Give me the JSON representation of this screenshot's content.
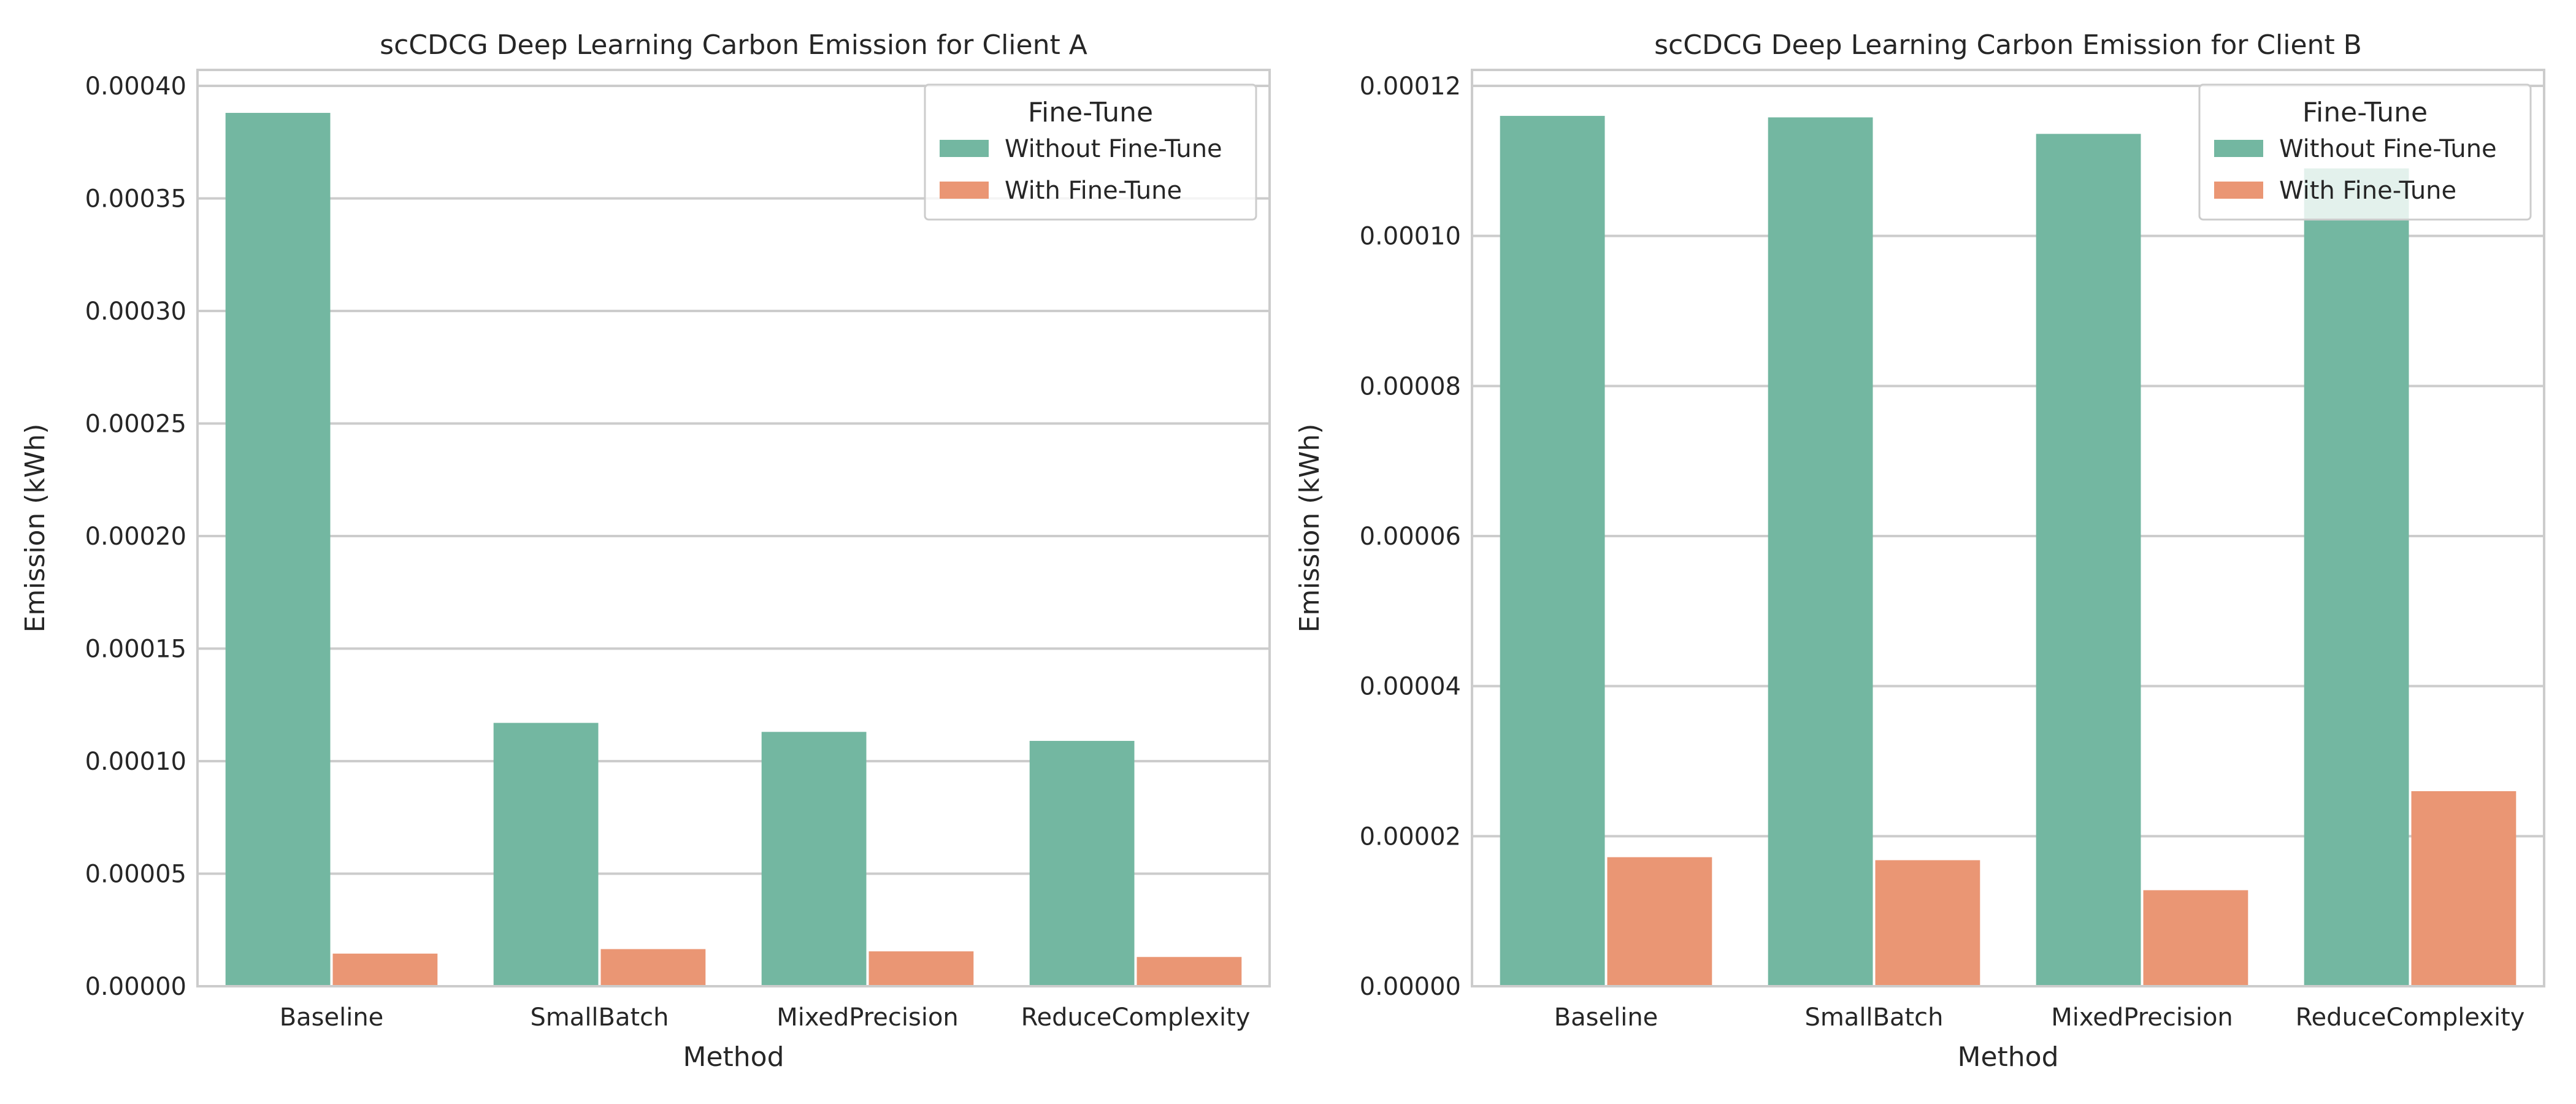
{
  "colors": {
    "without": "#73b7a1",
    "with": "#ea9674",
    "grid": "#cccccc",
    "frame": "#cccccc"
  },
  "chart_data": [
    {
      "type": "bar",
      "title": "scCDCG Deep Learning Carbon Emission for Client A",
      "xlabel": "Method",
      "ylabel": "Emission (kWh)",
      "categories": [
        "Baseline",
        "SmallBatch",
        "MixedPrecision",
        "ReduceComplexity"
      ],
      "series": [
        {
          "name": "Without Fine-Tune",
          "values": [
            0.000388,
            0.000117,
            0.000113,
            0.000109
          ]
        },
        {
          "name": "With Fine-Tune",
          "values": [
            1.45e-05,
            1.65e-05,
            1.55e-05,
            1.3e-05
          ]
        }
      ],
      "ylim": [
        0,
        0.0004
      ],
      "yticks": [
        "0.00000",
        "0.00005",
        "0.00010",
        "0.00015",
        "0.00020",
        "0.00025",
        "0.00030",
        "0.00035",
        "0.00040"
      ],
      "legend": {
        "title": "Fine-Tune",
        "placement": "top-right"
      },
      "grid": true
    },
    {
      "type": "bar",
      "title": "scCDCG Deep Learning Carbon Emission for Client B",
      "xlabel": "Method",
      "ylabel": "Emission (kWh)",
      "categories": [
        "Baseline",
        "SmallBatch",
        "MixedPrecision",
        "ReduceComplexity"
      ],
      "series": [
        {
          "name": "Without Fine-Tune",
          "values": [
            0.000116,
            0.0001158,
            0.0001136,
            0.000109
          ]
        },
        {
          "name": "With Fine-Tune",
          "values": [
            1.72e-05,
            1.68e-05,
            1.28e-05,
            2.6e-05
          ]
        }
      ],
      "ylim": [
        0,
        0.00012
      ],
      "yticks": [
        "0.00000",
        "0.00002",
        "0.00004",
        "0.00006",
        "0.00008",
        "0.00010",
        "0.00012"
      ],
      "legend": {
        "title": "Fine-Tune",
        "placement": "top-right"
      },
      "grid": true
    }
  ]
}
